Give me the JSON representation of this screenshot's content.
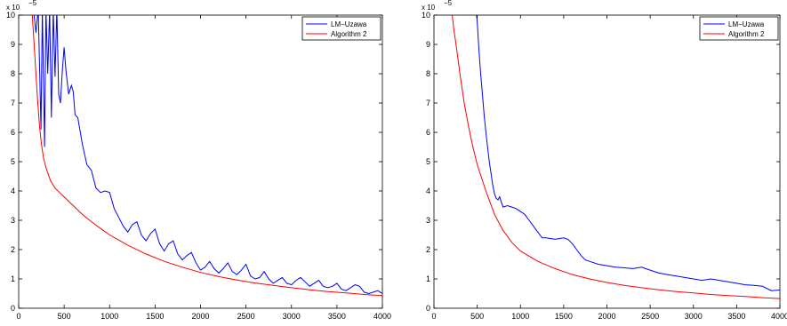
{
  "chart_data": [
    {
      "type": "line",
      "title": "",
      "xlabel": "",
      "ylabel": "",
      "xlim": [
        0,
        4000
      ],
      "ylim": [
        0,
        10
      ],
      "y_scale_label": {
        "base": "x 10",
        "exponent": "−5"
      },
      "x_ticks": [
        "0",
        "500",
        "1000",
        "1500",
        "2000",
        "2500",
        "3000",
        "3500",
        "4000"
      ],
      "y_ticks": [
        "0",
        "1",
        "2",
        "3",
        "4",
        "5",
        "6",
        "7",
        "8",
        "9",
        "10"
      ],
      "grid": false,
      "legend": "top-right",
      "series": [
        {
          "name": "LM−Uzawa",
          "color": "#0000ff",
          "x": [
            160,
            190,
            215,
            245,
            260,
            285,
            300,
            320,
            340,
            360,
            380,
            400,
            420,
            440,
            460,
            480,
            500,
            520,
            550,
            580,
            600,
            620,
            650,
            700,
            750,
            800,
            850,
            900,
            950,
            1000,
            1050,
            1100,
            1150,
            1200,
            1250,
            1300,
            1350,
            1400,
            1450,
            1500,
            1550,
            1600,
            1650,
            1700,
            1750,
            1800,
            1850,
            1900,
            1950,
            2000,
            2050,
            2100,
            2150,
            2200,
            2250,
            2300,
            2350,
            2400,
            2450,
            2500,
            2550,
            2600,
            2650,
            2700,
            2750,
            2800,
            2850,
            2900,
            2950,
            3000,
            3050,
            3100,
            3150,
            3200,
            3250,
            3300,
            3350,
            3400,
            3450,
            3500,
            3550,
            3600,
            3650,
            3700,
            3750,
            3800,
            3850,
            3900,
            3950,
            4000
          ],
          "values": [
            10.3,
            9.4,
            10.2,
            6.1,
            10.2,
            5.5,
            10.2,
            8.0,
            10.2,
            6.5,
            10.2,
            7.9,
            10.2,
            7.3,
            7.0,
            8.1,
            8.9,
            8.1,
            7.3,
            7.6,
            7.4,
            6.6,
            6.5,
            5.6,
            4.9,
            4.7,
            4.1,
            3.95,
            4.0,
            3.95,
            3.4,
            3.1,
            2.8,
            2.6,
            2.85,
            2.95,
            2.5,
            2.3,
            2.55,
            2.7,
            2.2,
            1.95,
            2.2,
            2.3,
            1.85,
            1.65,
            1.8,
            1.9,
            1.55,
            1.3,
            1.4,
            1.6,
            1.35,
            1.2,
            1.35,
            1.55,
            1.25,
            1.15,
            1.3,
            1.5,
            1.1,
            1.0,
            1.05,
            1.25,
            1.0,
            0.85,
            0.95,
            1.05,
            0.85,
            0.8,
            0.95,
            1.05,
            0.9,
            0.75,
            0.85,
            0.95,
            0.75,
            0.7,
            0.75,
            0.85,
            0.65,
            0.6,
            0.7,
            0.8,
            0.75,
            0.55,
            0.5,
            0.55,
            0.6,
            0.5
          ]
        },
        {
          "name": "Algorithm 2",
          "color": "#ff0000",
          "x": [
            150,
            170,
            190,
            210,
            230,
            250,
            275,
            300,
            350,
            400,
            450,
            500,
            600,
            700,
            800,
            900,
            1000,
            1200,
            1400,
            1600,
            1800,
            2000,
            2200,
            2400,
            2600,
            2800,
            3000,
            3200,
            3400,
            3600,
            3800,
            4000
          ],
          "values": [
            10.0,
            9.0,
            8.0,
            7.0,
            6.2,
            5.6,
            5.1,
            4.8,
            4.35,
            4.1,
            3.95,
            3.8,
            3.5,
            3.2,
            2.95,
            2.72,
            2.5,
            2.15,
            1.85,
            1.6,
            1.4,
            1.22,
            1.08,
            0.96,
            0.86,
            0.78,
            0.7,
            0.63,
            0.57,
            0.52,
            0.47,
            0.43
          ]
        }
      ]
    },
    {
      "type": "line",
      "title": "",
      "xlabel": "",
      "ylabel": "",
      "xlim": [
        0,
        4000
      ],
      "ylim": [
        0,
        10
      ],
      "y_scale_label": {
        "base": "x 10",
        "exponent": "−5"
      },
      "x_ticks": [
        "0",
        "500",
        "1000",
        "1500",
        "2000",
        "2500",
        "3000",
        "3500",
        "4000"
      ],
      "y_ticks": [
        "0",
        "1",
        "2",
        "3",
        "4",
        "5",
        "6",
        "7",
        "8",
        "9",
        "10"
      ],
      "grid": false,
      "legend": "top-right",
      "series": [
        {
          "name": "LM−Uzawa",
          "color": "#0000ff",
          "x": [
            480,
            500,
            520,
            540,
            560,
            580,
            600,
            620,
            640,
            660,
            680,
            700,
            720,
            740,
            760,
            780,
            800,
            850,
            900,
            950,
            1000,
            1050,
            1100,
            1150,
            1200,
            1250,
            1300,
            1400,
            1500,
            1550,
            1600,
            1650,
            1700,
            1750,
            1800,
            1900,
            2000,
            2100,
            2200,
            2300,
            2400,
            2500,
            2600,
            2700,
            2800,
            2900,
            3000,
            3100,
            3200,
            3300,
            3400,
            3500,
            3600,
            3700,
            3800,
            3900,
            4000
          ],
          "values": [
            10.3,
            9.8,
            8.8,
            8.0,
            7.3,
            6.6,
            6.0,
            5.5,
            5.0,
            4.6,
            4.2,
            3.9,
            3.75,
            3.7,
            3.8,
            3.6,
            3.45,
            3.5,
            3.45,
            3.4,
            3.3,
            3.2,
            3.0,
            2.8,
            2.6,
            2.4,
            2.4,
            2.35,
            2.4,
            2.35,
            2.2,
            2.0,
            1.8,
            1.65,
            1.6,
            1.5,
            1.45,
            1.4,
            1.38,
            1.35,
            1.4,
            1.3,
            1.2,
            1.15,
            1.1,
            1.05,
            1.0,
            0.95,
            1.0,
            0.95,
            0.9,
            0.85,
            0.8,
            0.78,
            0.75,
            0.6,
            0.62
          ]
        },
        {
          "name": "Algorithm 2",
          "color": "#ff0000",
          "x": [
            200,
            230,
            260,
            300,
            350,
            400,
            450,
            500,
            600,
            700,
            800,
            900,
            1000,
            1200,
            1400,
            1600,
            1800,
            2000,
            2200,
            2400,
            2600,
            2800,
            3000,
            3200,
            3400,
            3600,
            3800,
            4000
          ],
          "values": [
            10.3,
            9.5,
            8.9,
            8.0,
            7.0,
            6.2,
            5.5,
            4.9,
            4.0,
            3.2,
            2.65,
            2.25,
            1.95,
            1.6,
            1.35,
            1.15,
            1.0,
            0.88,
            0.78,
            0.7,
            0.63,
            0.57,
            0.52,
            0.47,
            0.43,
            0.4,
            0.36,
            0.33
          ]
        }
      ]
    }
  ]
}
